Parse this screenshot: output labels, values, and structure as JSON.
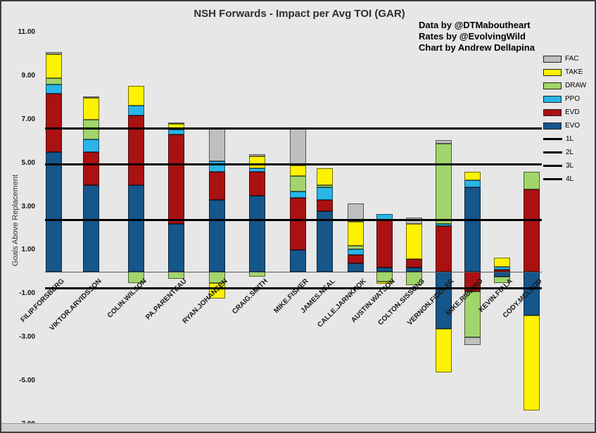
{
  "credits": {
    "lines": [
      "Data by @DTMaboutheart",
      "Rates by @EvolvingWild",
      "Chart by Andrew Dellapina"
    ]
  },
  "legend": {
    "entries": [
      {
        "label": "FAC",
        "color": "#bfbfbf",
        "kind": "box"
      },
      {
        "label": "TAKE",
        "color": "#fef200",
        "kind": "box"
      },
      {
        "label": "DRAW",
        "color": "#a2d56b",
        "kind": "box"
      },
      {
        "label": "PPO",
        "color": "#29b5e8",
        "kind": "box"
      },
      {
        "label": "EVD",
        "color": "#aa1111",
        "kind": "box"
      },
      {
        "label": "EVO",
        "color": "#15568b",
        "kind": "box"
      },
      {
        "label": "1L",
        "color": "#000000",
        "kind": "line"
      },
      {
        "label": "2L",
        "color": "#000000",
        "kind": "line"
      },
      {
        "label": "3L",
        "color": "#000000",
        "kind": "line"
      },
      {
        "label": "4L",
        "color": "#000000",
        "kind": "line"
      }
    ]
  },
  "chart_data": {
    "type": "bar",
    "stacked": true,
    "title": "NSH Forwards - Impact per Avg TOI (GAR)",
    "ylabel": "Goals Above Replacement",
    "xlabel": "",
    "ylim": [
      -7,
      11
    ],
    "ytick_step": 2,
    "grid": false,
    "legend_position": "right",
    "categories": [
      "FILIP.FORSBERG",
      "VIKTOR.ARVIDSSON",
      "COLIN.WILSON",
      "PA.PARENTEAU",
      "RYAN.JOHANSEN",
      "CRAIG.SMITH",
      "MIKE.FISHER",
      "JAMES.NEAL",
      "CALLE.JARNKROK",
      "AUSTIN.WATSON",
      "COLTON.SISSONS",
      "VERNON.FIDDLER",
      "MIKE.RIBEIRO",
      "KEVIN.FIALA",
      "CODY.MCLEOD"
    ],
    "series": [
      {
        "name": "EVO",
        "color": "#15568b",
        "values": [
          5.5,
          4.0,
          4.0,
          2.2,
          3.3,
          3.5,
          1.0,
          2.8,
          0.4,
          0.2,
          0.2,
          -2.6,
          3.9,
          -0.2,
          -2.0
        ]
      },
      {
        "name": "EVD",
        "color": "#aa1111",
        "values": [
          2.7,
          1.5,
          3.2,
          4.1,
          1.3,
          1.1,
          2.4,
          0.5,
          0.4,
          2.2,
          0.4,
          2.1,
          -0.9,
          0.1,
          3.8
        ]
      },
      {
        "name": "PPO",
        "color": "#29b5e8",
        "values": [
          0.4,
          0.6,
          0.45,
          0.25,
          0.5,
          0.15,
          0.3,
          0.6,
          0.25,
          0.25,
          0.0,
          0.1,
          0.3,
          0.15,
          0.0
        ]
      },
      {
        "name": "DRAW",
        "color": "#a2d56b",
        "values": [
          0.3,
          0.9,
          -0.5,
          -0.3,
          -0.5,
          -0.2,
          0.7,
          0.1,
          0.15,
          -0.45,
          -0.6,
          3.7,
          -2.1,
          -0.3,
          0.8
        ]
      },
      {
        "name": "TAKE",
        "color": "#fef200",
        "values": [
          1.1,
          1.0,
          0.9,
          0.25,
          -0.7,
          0.55,
          0.5,
          0.75,
          1.1,
          -0.1,
          1.6,
          -2.0,
          0.4,
          0.4,
          -4.35
        ]
      },
      {
        "name": "FAC",
        "color": "#bfbfbf",
        "values": [
          0.1,
          0.05,
          0.0,
          0.05,
          1.55,
          0.1,
          1.7,
          0.0,
          0.85,
          0.0,
          0.3,
          0.15,
          -0.35,
          0.0,
          0.0
        ]
      }
    ],
    "reference_lines": [
      {
        "label": "1L",
        "y": 6.6
      },
      {
        "label": "2L",
        "y": 4.95
      },
      {
        "label": "3L",
        "y": 2.4
      },
      {
        "label": "4L",
        "y": -0.75
      }
    ]
  }
}
